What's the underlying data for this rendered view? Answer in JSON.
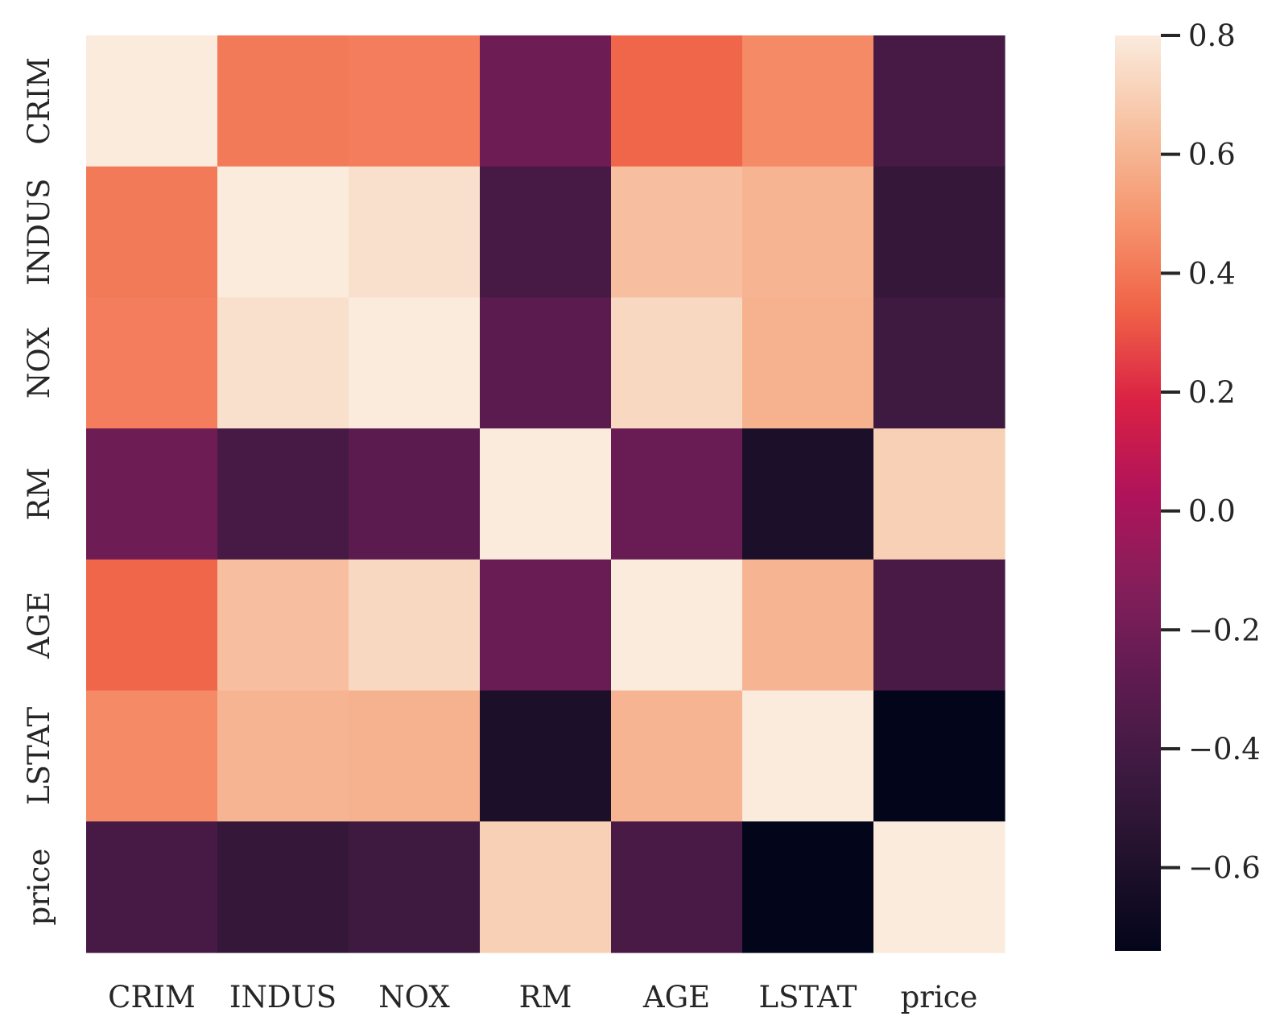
{
  "chart_data": {
    "type": "heatmap",
    "title": "",
    "xlabel": "",
    "ylabel": "",
    "x_categories": [
      "CRIM",
      "INDUS",
      "NOX",
      "RM",
      "AGE",
      "LSTAT",
      "price"
    ],
    "y_categories": [
      "CRIM",
      "INDUS",
      "NOX",
      "RM",
      "AGE",
      "LSTAT",
      "price"
    ],
    "values": [
      [
        1.0,
        0.41,
        0.42,
        -0.22,
        0.35,
        0.46,
        -0.39
      ],
      [
        0.41,
        1.0,
        0.76,
        -0.39,
        0.64,
        0.6,
        -0.48
      ],
      [
        0.42,
        0.76,
        1.0,
        -0.3,
        0.73,
        0.59,
        -0.43
      ],
      [
        -0.22,
        -0.39,
        -0.3,
        1.0,
        -0.24,
        -0.61,
        0.7
      ],
      [
        0.35,
        0.64,
        0.73,
        -0.24,
        1.0,
        0.6,
        -0.38
      ],
      [
        0.46,
        0.6,
        0.59,
        -0.61,
        0.6,
        1.0,
        -0.74
      ],
      [
        -0.39,
        -0.48,
        -0.43,
        0.7,
        -0.38,
        -0.74,
        1.0
      ]
    ],
    "colormap": "rocket",
    "vmin": -0.74,
    "vmax": 0.8,
    "colorbar": {
      "ticks": [
        0.8,
        0.6,
        0.4,
        0.2,
        0.0,
        -0.2,
        -0.4,
        -0.6
      ],
      "tick_labels": [
        "0.8",
        "0.6",
        "0.4",
        "0.2",
        "0.0",
        "−0.2",
        "−0.4",
        "−0.6"
      ]
    },
    "grid": false,
    "legend": "colorbar-right"
  }
}
